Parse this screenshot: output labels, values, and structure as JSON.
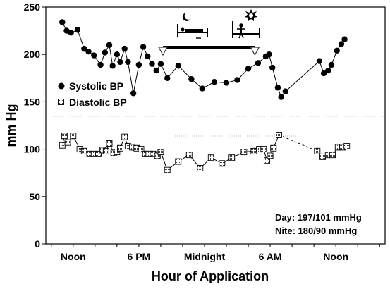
{
  "chart_data": {
    "type": "line",
    "ylabel": "mm Hg",
    "xlabel": "Hour of Application",
    "ylim": [
      0,
      250
    ],
    "yticks": [
      0,
      50,
      100,
      150,
      200,
      250
    ],
    "xticks": [
      {
        "label": "Noon",
        "hour": 0
      },
      {
        "label": "6 PM",
        "hour": 6
      },
      {
        "label": "Midnight",
        "hour": 12
      },
      {
        "label": "6 AM",
        "hour": 18
      },
      {
        "label": "Noon",
        "hour": 24
      }
    ],
    "xlim": [
      -2.5,
      28.5
    ],
    "sleep_period": {
      "start_hour": 8.2,
      "end_hour": 16.6
    },
    "legend": [
      {
        "name": "Systolic BP",
        "marker": "circle"
      },
      {
        "name": "Diastolic BP",
        "marker": "square"
      }
    ],
    "stats": {
      "day": "Day: 197/101 mmHg",
      "nite": "Nite: 180/90 mmHg"
    },
    "series": [
      {
        "name": "Systolic BP",
        "marker": "circle",
        "segments": [
          [
            [
              -1.0,
              234
            ],
            [
              -0.6,
              225
            ],
            [
              -0.2,
              223
            ],
            [
              0.4,
              226
            ],
            [
              1.0,
              206
            ],
            [
              1.4,
              203
            ],
            [
              1.9,
              199
            ],
            [
              2.5,
              189
            ],
            [
              2.9,
              202
            ],
            [
              3.3,
              210
            ],
            [
              3.6,
              188
            ],
            [
              4.0,
              200
            ],
            [
              4.3,
              192
            ],
            [
              4.7,
              206
            ],
            [
              5.0,
              192
            ],
            [
              5.5,
              159
            ],
            [
              6.0,
              189
            ],
            [
              6.4,
              208
            ],
            [
              6.8,
              198
            ],
            [
              7.2,
              190
            ],
            [
              7.6,
              183
            ],
            [
              8.0,
              190
            ],
            [
              8.6,
              175
            ],
            [
              9.6,
              188
            ],
            [
              10.8,
              174
            ],
            [
              11.8,
              164
            ],
            [
              12.9,
              171
            ],
            [
              14.0,
              170
            ],
            [
              15.0,
              173
            ],
            [
              16.0,
              185
            ],
            [
              16.9,
              191
            ],
            [
              17.6,
              198
            ],
            [
              17.9,
              200
            ],
            [
              18.2,
              186
            ],
            [
              18.7,
              165
            ],
            [
              19.0,
              155
            ],
            [
              19.4,
              161
            ]
          ],
          [
            [
              22.5,
              193
            ],
            [
              22.9,
              180
            ],
            [
              23.3,
              183
            ],
            [
              23.6,
              189
            ],
            [
              24.1,
              204
            ],
            [
              24.5,
              211
            ],
            [
              24.8,
              216
            ]
          ]
        ]
      },
      {
        "name": "Diastolic BP",
        "marker": "square",
        "segments": [
          [
            [
              -1.0,
              104
            ],
            [
              -0.8,
              114
            ],
            [
              -0.5,
              107
            ],
            [
              0.0,
              114
            ],
            [
              0.6,
              100
            ],
            [
              1.0,
              98
            ],
            [
              1.5,
              95
            ],
            [
              1.9,
              95
            ],
            [
              2.3,
              95
            ],
            [
              2.7,
              99
            ],
            [
              3.0,
              98
            ],
            [
              3.3,
              106
            ],
            [
              3.7,
              96
            ],
            [
              4.0,
              97
            ],
            [
              4.3,
              101
            ],
            [
              4.7,
              113
            ],
            [
              5.0,
              103
            ],
            [
              5.4,
              102
            ],
            [
              5.8,
              101
            ],
            [
              6.2,
              100
            ],
            [
              6.6,
              95
            ],
            [
              6.9,
              95
            ],
            [
              7.3,
              95
            ],
            [
              7.7,
              93
            ],
            [
              8.0,
              97
            ],
            [
              8.6,
              78
            ],
            [
              9.6,
              87
            ],
            [
              10.6,
              94
            ],
            [
              11.6,
              80
            ],
            [
              12.6,
              91
            ],
            [
              13.6,
              85
            ],
            [
              14.5,
              91
            ],
            [
              15.6,
              97
            ],
            [
              16.5,
              98
            ],
            [
              17.0,
              100
            ],
            [
              17.4,
              100
            ],
            [
              17.7,
              88
            ],
            [
              18.0,
              93
            ],
            [
              18.3,
              101
            ],
            [
              18.8,
              115
            ]
          ],
          [
            [
              22.3,
              98
            ],
            [
              22.8,
              92
            ],
            [
              23.3,
              94
            ],
            [
              23.7,
              94
            ],
            [
              24.2,
              102
            ],
            [
              24.6,
              102
            ],
            [
              25.0,
              103
            ]
          ]
        ]
      }
    ]
  }
}
